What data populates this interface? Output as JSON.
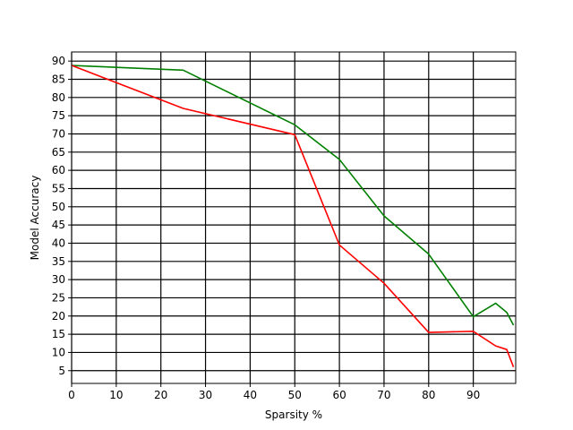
{
  "chart_data": {
    "type": "line",
    "title": "",
    "xlabel": "Sparsity %",
    "ylabel": "Model Accuracy",
    "xlim": [
      0,
      99.5
    ],
    "ylim": [
      1.5,
      92.5
    ],
    "xticks": [
      0,
      10,
      20,
      30,
      40,
      50,
      60,
      70,
      80,
      90
    ],
    "yticks": [
      5,
      10,
      15,
      20,
      25,
      30,
      35,
      40,
      45,
      50,
      55,
      60,
      65,
      70,
      75,
      80,
      85,
      90
    ],
    "grid": true,
    "series": [
      {
        "color": "#008000",
        "points": [
          [
            0,
            88.8
          ],
          [
            25,
            87.5
          ],
          [
            50,
            72.5
          ],
          [
            60,
            63.0
          ],
          [
            70,
            47.5
          ],
          [
            80,
            37.0
          ],
          [
            90,
            19.8
          ],
          [
            95,
            23.5
          ],
          [
            97.5,
            21.0
          ],
          [
            99,
            17.5
          ]
        ]
      },
      {
        "color": "#ff0000",
        "points": [
          [
            0,
            88.8
          ],
          [
            25,
            77.0
          ],
          [
            50,
            69.8
          ],
          [
            60,
            39.5
          ],
          [
            70,
            29.0
          ],
          [
            80,
            15.5
          ],
          [
            90,
            15.8
          ],
          [
            95,
            11.8
          ],
          [
            97.5,
            10.8
          ],
          [
            99,
            6.0
          ]
        ]
      }
    ]
  }
}
